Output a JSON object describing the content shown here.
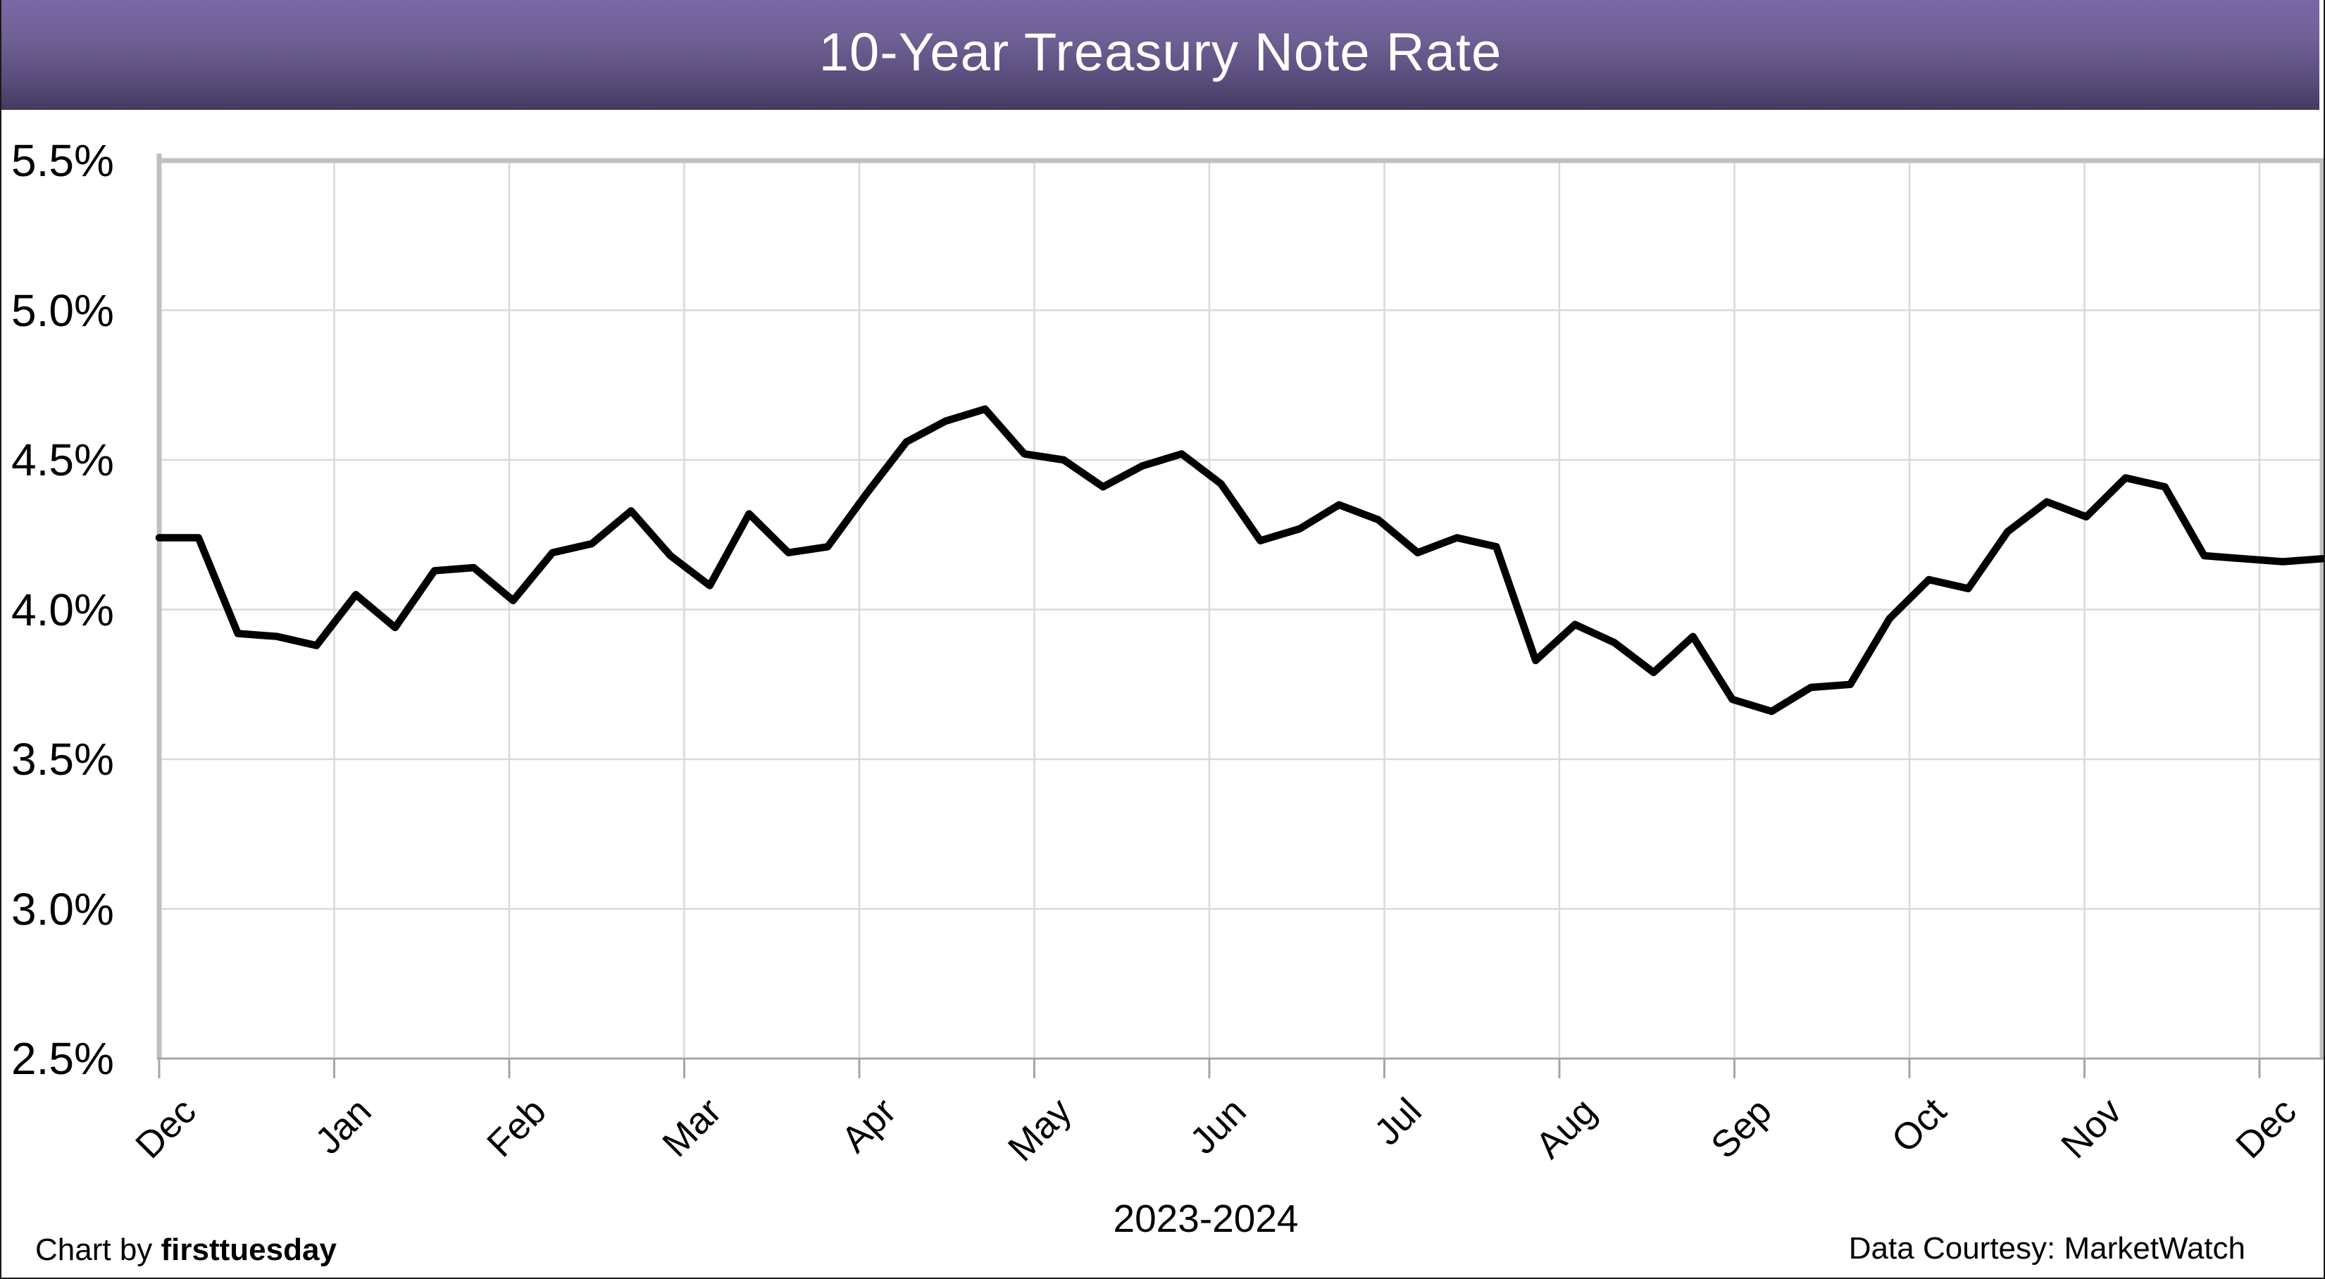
{
  "header": {
    "title": "10-Year Treasury Note Rate",
    "bar_gradient_top": "#7a67a6",
    "bar_gradient_bottom": "#453a61",
    "title_color": "#ffffff"
  },
  "footer": {
    "credit_prefix": "Chart by ",
    "credit_brand": "firsttuesday",
    "data_courtesy": "Data Courtesy: MarketWatch"
  },
  "chart_data": {
    "type": "line",
    "title": "10-Year Treasury Note Rate",
    "xlabel": "2023-2024",
    "ylabel": "",
    "ylim": [
      2.5,
      5.5
    ],
    "y_step": 0.5,
    "y_tick_labels": [
      "5.5%",
      "5.0%",
      "4.5%",
      "4.0%",
      "3.5%",
      "3.0%",
      "2.5%"
    ],
    "x_tick_labels": [
      "Dec",
      "Jan",
      "Feb",
      "Mar",
      "Apr",
      "May",
      "Jun",
      "Jul",
      "Aug",
      "Sep",
      "Oct",
      "Nov",
      "Dec"
    ],
    "grid": true,
    "legend_position": "none",
    "series": [
      {
        "name": "10-Year Treasury Note Rate",
        "cadence": "weekly",
        "unit": "percent",
        "values": [
          4.24,
          4.24,
          3.92,
          3.91,
          3.88,
          4.05,
          3.94,
          4.13,
          4.14,
          4.03,
          4.19,
          4.22,
          4.33,
          4.18,
          4.08,
          4.32,
          4.19,
          4.21,
          4.39,
          4.56,
          4.63,
          4.67,
          4.52,
          4.5,
          4.41,
          4.48,
          4.52,
          4.42,
          4.23,
          4.27,
          4.35,
          4.3,
          4.19,
          4.24,
          4.21,
          3.83,
          3.95,
          3.89,
          3.79,
          3.91,
          3.7,
          3.66,
          3.74,
          3.75,
          3.97,
          4.1,
          4.07,
          4.26,
          4.36,
          4.31,
          4.44,
          4.41,
          4.18,
          4.17,
          4.16,
          4.17
        ]
      }
    ],
    "colors": {
      "line": "#000000",
      "gridline": "#d9d9d9",
      "plot_border": "#c0c0c0",
      "axis": "#a6a6a6",
      "text": "#000000"
    }
  }
}
